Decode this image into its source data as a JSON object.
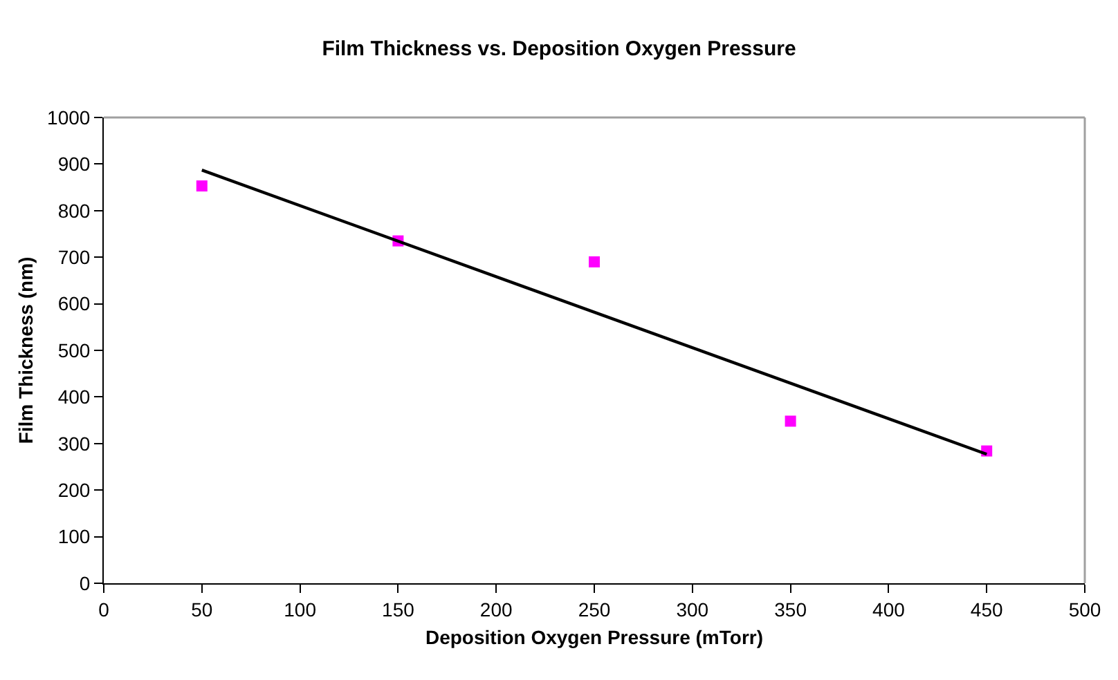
{
  "chart_data": {
    "type": "scatter",
    "title": "Film Thickness vs. Deposition Oxygen Pressure",
    "xlabel": "Deposition Oxygen Pressure (mTorr)",
    "ylabel": "Film Thickness (nm)",
    "series": [
      {
        "color": "#ff00ff",
        "marker": "square",
        "x": [
          50,
          150,
          250,
          350,
          450
        ],
        "values": [
          853,
          735,
          690,
          348,
          284
        ]
      },
      {
        "type": "line",
        "color": "#000000",
        "marker": "none",
        "line_style": "solid",
        "x": [
          50,
          450
        ],
        "values": [
          887,
          277
        ]
      }
    ],
    "xlim": [
      0,
      500
    ],
    "xticks": [
      0,
      50,
      100,
      150,
      200,
      250,
      300,
      350,
      400,
      450,
      500
    ],
    "ylim": [
      0,
      1000
    ],
    "yticks": [
      0,
      100,
      200,
      300,
      400,
      500,
      600,
      700,
      800,
      900,
      1000
    ],
    "grid": false
  }
}
